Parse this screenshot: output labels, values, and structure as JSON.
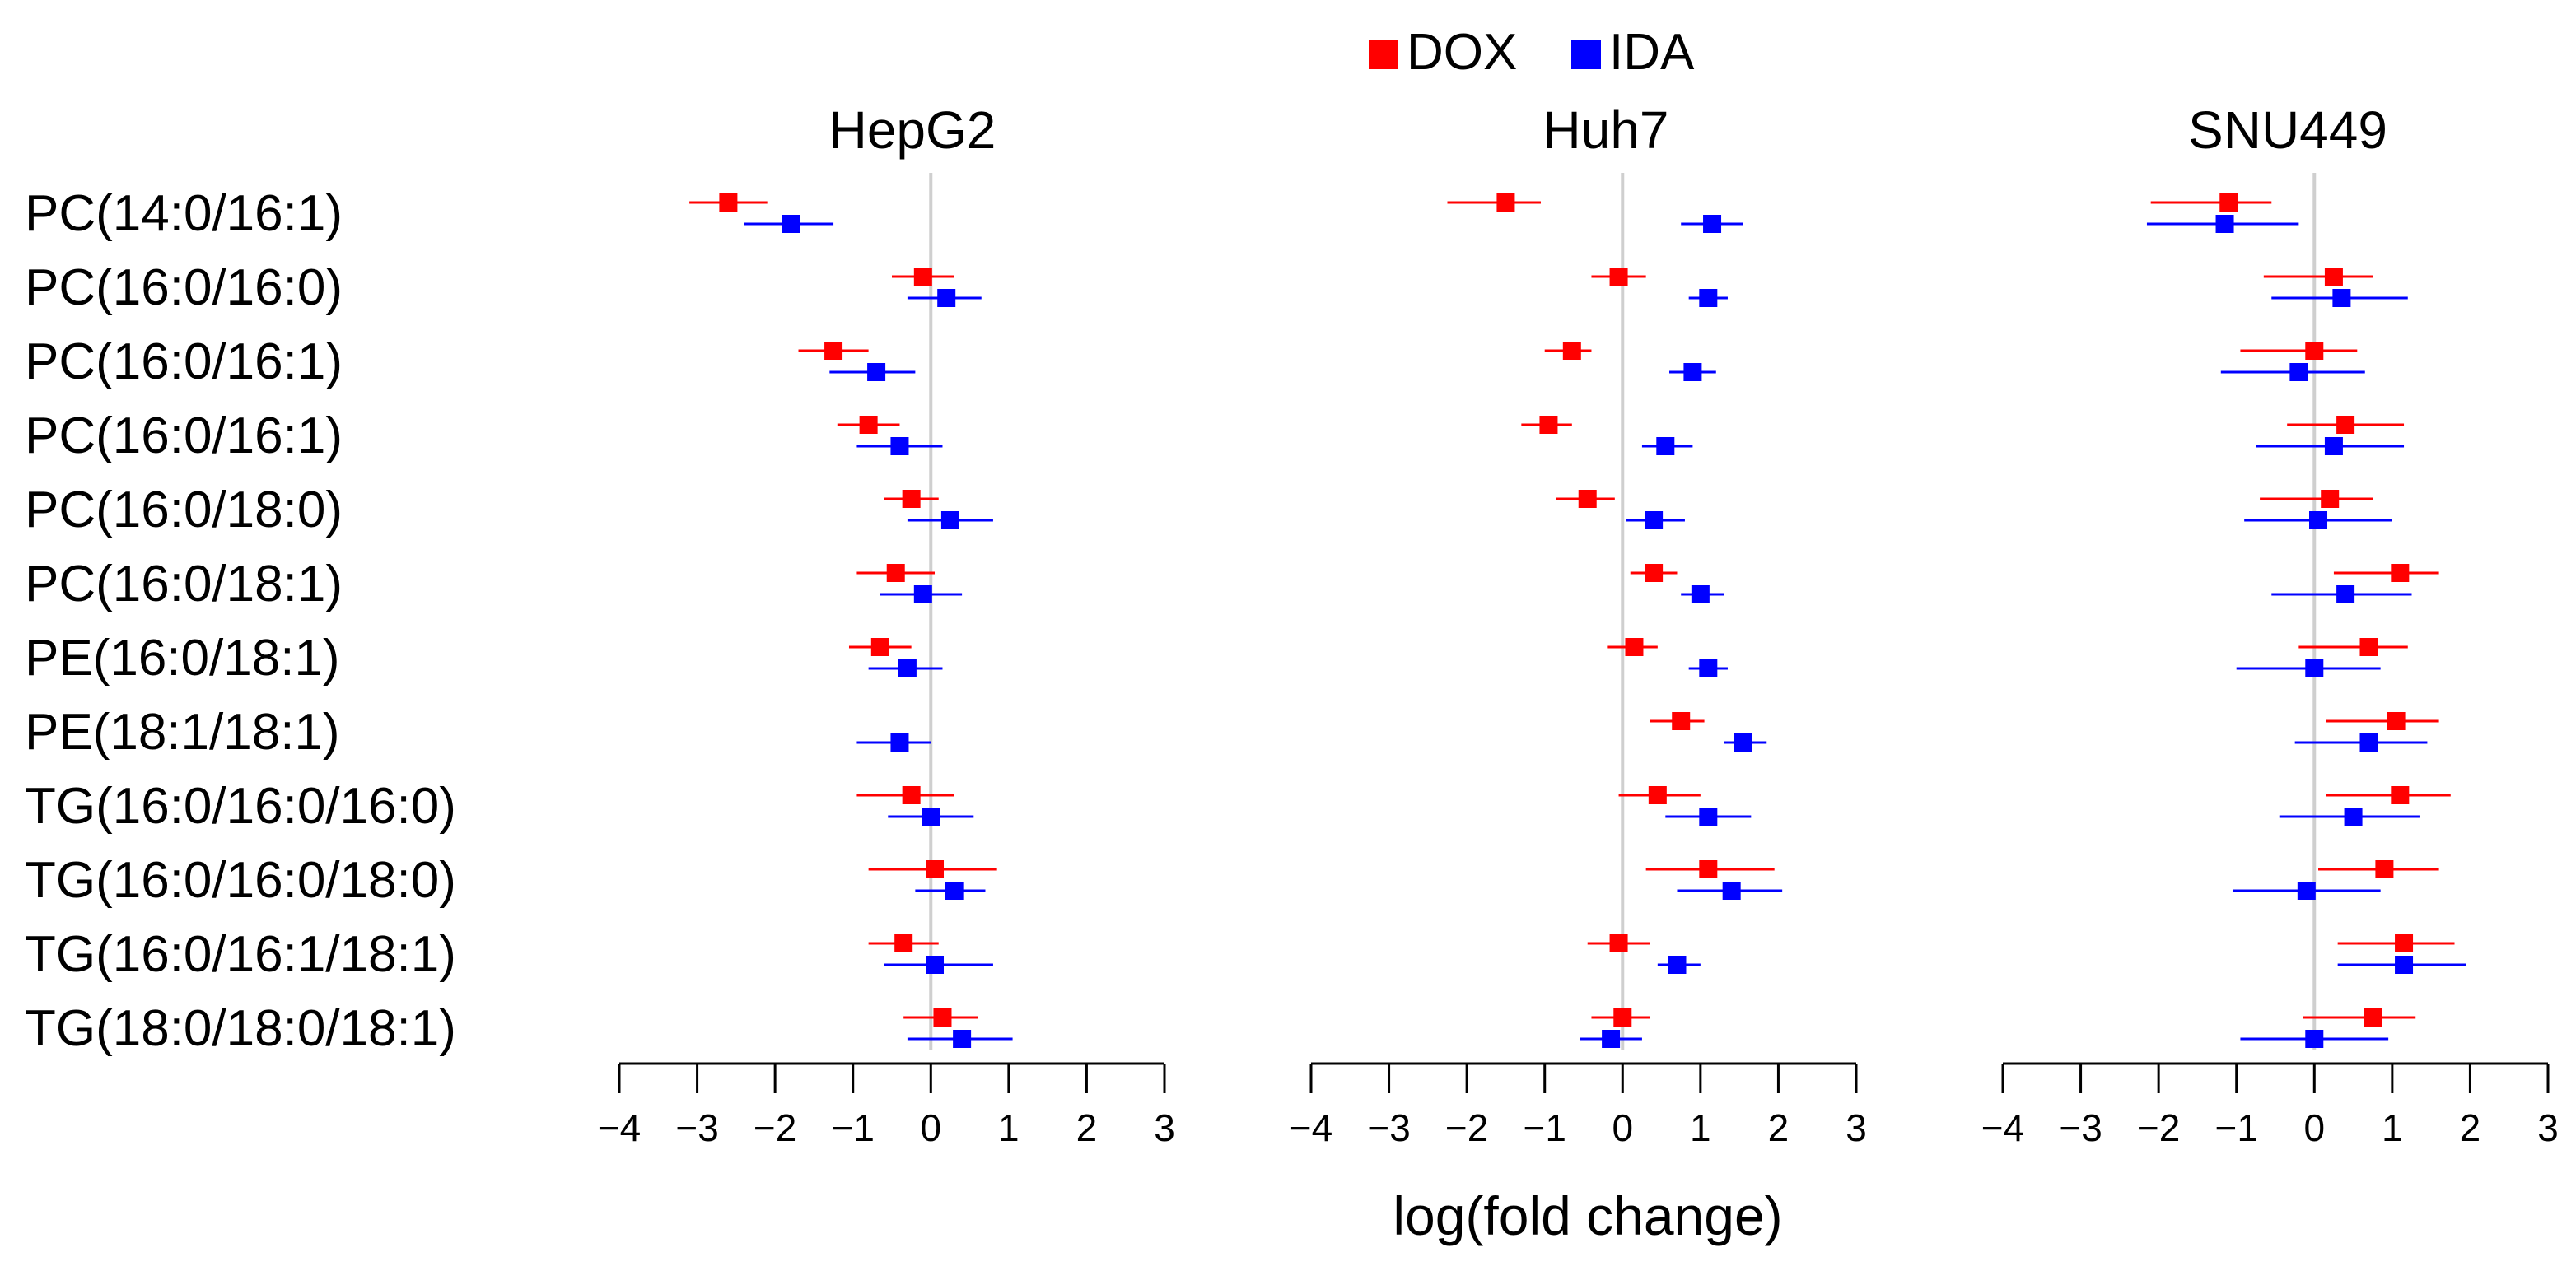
{
  "chart_data": {
    "type": "forest-plot",
    "xlabel": "log(fold change)",
    "xlim": [
      -4,
      3
    ],
    "xticks": [
      "−4",
      "−3",
      "−2",
      "−1",
      "0",
      "1",
      "2",
      "3"
    ],
    "xtick_values": [
      -4,
      -3,
      -2,
      -1,
      0,
      1,
      2,
      3
    ],
    "reference_line": 0,
    "legend": [
      {
        "name": "DOX",
        "color": "#ff0000"
      },
      {
        "name": "IDA",
        "color": "#0000ff"
      }
    ],
    "categories": [
      "PC(14:0/16:1)",
      "PC(16:0/16:0)",
      "PC(16:0/16:1)",
      "PC(16:0/16:1)",
      "PC(16:0/18:0)",
      "PC(16:0/18:1)",
      "PE(16:0/18:1)",
      "PE(18:1/18:1)",
      "TG(16:0/16:0/16:0)",
      "TG(16:0/16:0/18:0)",
      "TG(16:0/16:1/18:1)",
      "TG(18:0/18:0/18:1)"
    ],
    "panels": [
      {
        "title": "HepG2",
        "series": [
          {
            "name": "DOX",
            "points": [
              {
                "est": -2.6,
                "lo": -3.1,
                "hi": -2.1
              },
              {
                "est": -0.1,
                "lo": -0.5,
                "hi": 0.3
              },
              {
                "est": -1.25,
                "lo": -1.7,
                "hi": -0.8
              },
              {
                "est": -0.8,
                "lo": -1.2,
                "hi": -0.4
              },
              {
                "est": -0.25,
                "lo": -0.6,
                "hi": 0.1
              },
              {
                "est": -0.45,
                "lo": -0.95,
                "hi": 0.05
              },
              {
                "est": -0.65,
                "lo": -1.05,
                "hi": -0.25
              },
              null,
              {
                "est": -0.25,
                "lo": -0.95,
                "hi": 0.3
              },
              {
                "est": 0.05,
                "lo": -0.8,
                "hi": 0.85
              },
              {
                "est": -0.35,
                "lo": -0.8,
                "hi": 0.1
              },
              {
                "est": 0.15,
                "lo": -0.35,
                "hi": 0.6
              }
            ]
          },
          {
            "name": "IDA",
            "points": [
              {
                "est": -1.8,
                "lo": -2.4,
                "hi": -1.25
              },
              {
                "est": 0.2,
                "lo": -0.3,
                "hi": 0.65
              },
              {
                "est": -0.7,
                "lo": -1.3,
                "hi": -0.2
              },
              {
                "est": -0.4,
                "lo": -0.95,
                "hi": 0.15
              },
              {
                "est": 0.25,
                "lo": -0.3,
                "hi": 0.8
              },
              {
                "est": -0.1,
                "lo": -0.65,
                "hi": 0.4
              },
              {
                "est": -0.3,
                "lo": -0.8,
                "hi": 0.15
              },
              {
                "est": -0.4,
                "lo": -0.95,
                "hi": 0.0
              },
              {
                "est": 0.0,
                "lo": -0.55,
                "hi": 0.55
              },
              {
                "est": 0.3,
                "lo": -0.2,
                "hi": 0.7
              },
              {
                "est": 0.05,
                "lo": -0.6,
                "hi": 0.8
              },
              {
                "est": 0.4,
                "lo": -0.3,
                "hi": 1.05
              }
            ]
          }
        ]
      },
      {
        "title": "Huh7",
        "series": [
          {
            "name": "DOX",
            "points": [
              {
                "est": -1.5,
                "lo": -2.25,
                "hi": -1.05
              },
              {
                "est": -0.05,
                "lo": -0.4,
                "hi": 0.3
              },
              {
                "est": -0.65,
                "lo": -1.0,
                "hi": -0.4
              },
              {
                "est": -0.95,
                "lo": -1.3,
                "hi": -0.65
              },
              {
                "est": -0.45,
                "lo": -0.85,
                "hi": -0.1
              },
              {
                "est": 0.4,
                "lo": 0.1,
                "hi": 0.7
              },
              {
                "est": 0.15,
                "lo": -0.2,
                "hi": 0.45
              },
              {
                "est": 0.75,
                "lo": 0.35,
                "hi": 1.05
              },
              {
                "est": 0.45,
                "lo": -0.05,
                "hi": 1.0
              },
              {
                "est": 1.1,
                "lo": 0.3,
                "hi": 1.95
              },
              {
                "est": -0.05,
                "lo": -0.45,
                "hi": 0.35
              },
              {
                "est": 0.0,
                "lo": -0.4,
                "hi": 0.35
              }
            ]
          },
          {
            "name": "IDA",
            "points": [
              {
                "est": 1.15,
                "lo": 0.75,
                "hi": 1.55
              },
              {
                "est": 1.1,
                "lo": 0.85,
                "hi": 1.35
              },
              {
                "est": 0.9,
                "lo": 0.6,
                "hi": 1.2
              },
              {
                "est": 0.55,
                "lo": 0.25,
                "hi": 0.9
              },
              {
                "est": 0.4,
                "lo": 0.05,
                "hi": 0.8
              },
              {
                "est": 1.0,
                "lo": 0.75,
                "hi": 1.3
              },
              {
                "est": 1.1,
                "lo": 0.85,
                "hi": 1.35
              },
              {
                "est": 1.55,
                "lo": 1.3,
                "hi": 1.85
              },
              {
                "est": 1.1,
                "lo": 0.55,
                "hi": 1.65
              },
              {
                "est": 1.4,
                "lo": 0.7,
                "hi": 2.05
              },
              {
                "est": 0.7,
                "lo": 0.45,
                "hi": 1.0
              },
              {
                "est": -0.15,
                "lo": -0.55,
                "hi": 0.25
              }
            ]
          }
        ]
      },
      {
        "title": "SNU449",
        "series": [
          {
            "name": "DOX",
            "points": [
              {
                "est": -1.1,
                "lo": -2.1,
                "hi": -0.55
              },
              {
                "est": 0.25,
                "lo": -0.65,
                "hi": 0.75
              },
              {
                "est": 0.0,
                "lo": -0.95,
                "hi": 0.55
              },
              {
                "est": 0.4,
                "lo": -0.35,
                "hi": 1.15
              },
              {
                "est": 0.2,
                "lo": -0.7,
                "hi": 0.75
              },
              {
                "est": 1.1,
                "lo": 0.25,
                "hi": 1.6
              },
              {
                "est": 0.7,
                "lo": -0.2,
                "hi": 1.2
              },
              {
                "est": 1.05,
                "lo": 0.15,
                "hi": 1.6
              },
              {
                "est": 1.1,
                "lo": 0.15,
                "hi": 1.75
              },
              {
                "est": 0.9,
                "lo": 0.05,
                "hi": 1.6
              },
              {
                "est": 1.15,
                "lo": 0.3,
                "hi": 1.8
              },
              {
                "est": 0.75,
                "lo": -0.15,
                "hi": 1.3
              }
            ]
          },
          {
            "name": "IDA",
            "points": [
              {
                "est": -1.15,
                "lo": -2.15,
                "hi": -0.2
              },
              {
                "est": 0.35,
                "lo": -0.55,
                "hi": 1.2
              },
              {
                "est": -0.2,
                "lo": -1.2,
                "hi": 0.65
              },
              {
                "est": 0.25,
                "lo": -0.75,
                "hi": 1.15
              },
              {
                "est": 0.05,
                "lo": -0.9,
                "hi": 1.0
              },
              {
                "est": 0.4,
                "lo": -0.55,
                "hi": 1.25
              },
              {
                "est": 0.0,
                "lo": -1.0,
                "hi": 0.85
              },
              {
                "est": 0.7,
                "lo": -0.25,
                "hi": 1.45
              },
              {
                "est": 0.5,
                "lo": -0.45,
                "hi": 1.35
              },
              {
                "est": -0.1,
                "lo": -1.05,
                "hi": 0.85
              },
              {
                "est": 1.15,
                "lo": 0.3,
                "hi": 1.95
              },
              {
                "est": 0.0,
                "lo": -0.95,
                "hi": 0.95
              }
            ]
          }
        ]
      }
    ]
  }
}
